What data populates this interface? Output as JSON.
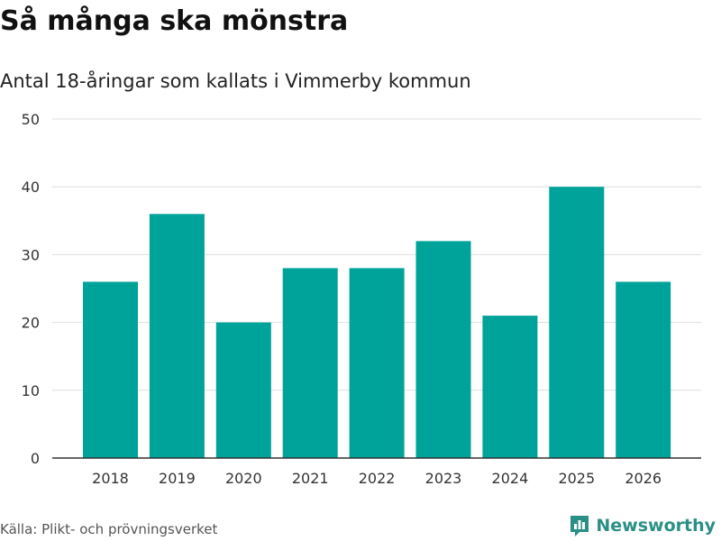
{
  "header": {
    "title": "Så många ska mönstra",
    "subtitle": "Antal 18-åringar som kallats i Vimmerby kommun"
  },
  "footer": {
    "source": "Källa: Plikt- och prövningsverket",
    "brand": "Newsworthy"
  },
  "colors": {
    "bar": "#00a39a",
    "grid": "#dddddd",
    "axis": "#333333",
    "brand": "#2a8f85"
  },
  "chart_data": {
    "type": "bar",
    "title": "Så många ska mönstra",
    "subtitle": "Antal 18-åringar som kallats i Vimmerby kommun",
    "xlabel": "",
    "ylabel": "",
    "categories": [
      "2018",
      "2019",
      "2020",
      "2021",
      "2022",
      "2023",
      "2024",
      "2025",
      "2026"
    ],
    "values": [
      26,
      36,
      20,
      28,
      28,
      32,
      21,
      40,
      26
    ],
    "ylim": [
      0,
      50
    ],
    "yticks": [
      0,
      10,
      20,
      30,
      40,
      50
    ],
    "grid": true
  }
}
